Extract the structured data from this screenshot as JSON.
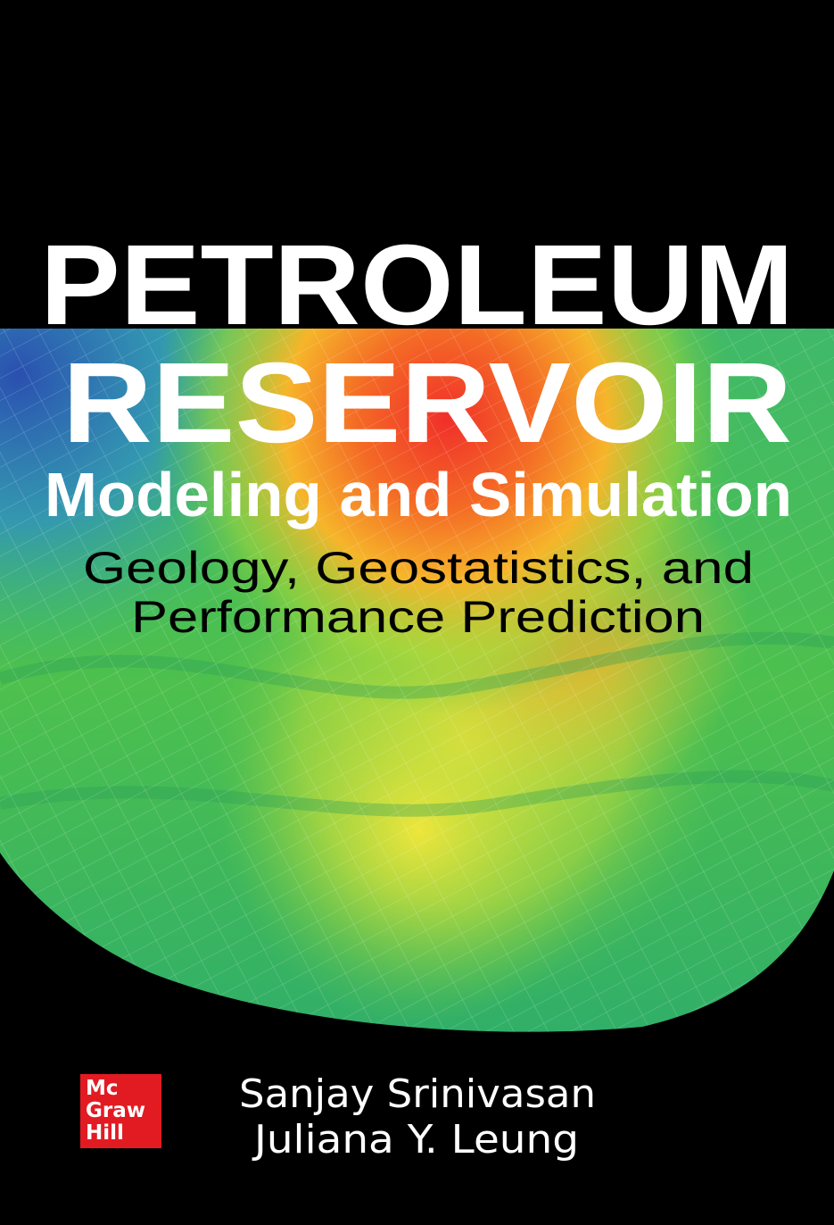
{
  "cover": {
    "title_line1": "PETROLEUM",
    "title_line2": "RESERVOIR",
    "title_line3": "Modeling and Simulation",
    "subtitle_line1": "Geology, Geostatistics, and",
    "subtitle_line2": "Performance Prediction",
    "authors": [
      "Sanjay Srinivasan",
      "Juliana Y. Leung"
    ],
    "publisher_logo": [
      "Mc",
      "Graw",
      "Hill"
    ]
  },
  "colors": {
    "background": "#000000",
    "logo_red": "#e21b23",
    "title_white": "#ffffff",
    "subtitle_black": "#000000"
  }
}
